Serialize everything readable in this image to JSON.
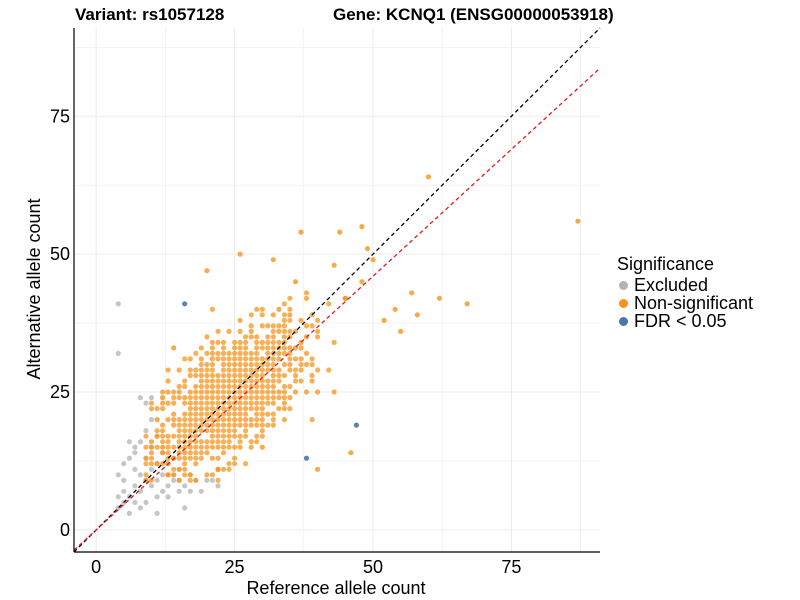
{
  "header": {
    "variant": "Variant: rs1057128",
    "gene": "Gene: KCNQ1 (ENSG00000053918)"
  },
  "legend": {
    "title": "Significance",
    "items": [
      {
        "label": "Excluded",
        "color": "#b3b3b3"
      },
      {
        "label": "Non-significant",
        "color": "#f7941d"
      },
      {
        "label": "FDR < 0.05",
        "color": "#4a76a8"
      }
    ]
  },
  "chart_data": {
    "type": "scatter",
    "xlabel": "Reference allele count",
    "ylabel": "Alternative allele count",
    "xlim": [
      -4,
      91
    ],
    "ylim": [
      -4,
      91
    ],
    "xticks": [
      0,
      25,
      50,
      75
    ],
    "yticks": [
      0,
      25,
      50,
      75
    ],
    "grid": true,
    "legend_position": "right",
    "reference_lines": [
      {
        "slope": 1.0,
        "intercept": 0,
        "color": "#000000",
        "style": "dashed"
      },
      {
        "slope": 0.92,
        "intercept": 0,
        "color": "#e41a1c",
        "style": "dashed"
      }
    ],
    "series": [
      {
        "name": "Excluded",
        "color": "#b3b3b3",
        "points": [
          [
            4,
            41
          ],
          [
            4,
            32
          ],
          [
            4,
            6
          ],
          [
            4,
            4
          ],
          [
            5,
            9
          ],
          [
            5,
            12
          ],
          [
            5,
            5
          ],
          [
            6,
            13
          ],
          [
            6,
            6
          ],
          [
            6,
            3
          ],
          [
            7,
            14
          ],
          [
            7,
            8
          ],
          [
            7,
            5
          ],
          [
            7,
            15
          ],
          [
            8,
            16
          ],
          [
            8,
            10
          ],
          [
            8,
            7
          ],
          [
            8,
            24
          ],
          [
            9,
            23
          ],
          [
            9,
            18
          ],
          [
            9,
            13
          ],
          [
            9,
            5
          ],
          [
            10,
            24
          ],
          [
            10,
            20
          ],
          [
            10,
            15
          ],
          [
            10,
            11
          ],
          [
            10,
            8
          ],
          [
            11,
            17
          ],
          [
            11,
            12
          ],
          [
            11,
            9
          ],
          [
            11,
            6
          ],
          [
            11,
            3
          ],
          [
            12,
            14
          ],
          [
            12,
            10
          ],
          [
            12,
            7
          ],
          [
            13,
            12
          ],
          [
            13,
            8
          ],
          [
            13,
            6
          ],
          [
            14,
            13
          ],
          [
            14,
            10
          ],
          [
            14,
            9
          ],
          [
            15,
            11
          ],
          [
            15,
            9
          ],
          [
            15,
            7
          ],
          [
            16,
            8
          ],
          [
            16,
            4
          ],
          [
            17,
            7
          ],
          [
            17,
            10
          ],
          [
            18,
            9
          ],
          [
            19,
            7
          ],
          [
            20,
            9
          ],
          [
            21,
            9
          ],
          [
            22,
            8
          ],
          [
            6,
            16
          ],
          [
            7,
            11
          ],
          [
            9,
            9
          ],
          [
            8,
            4
          ],
          [
            5,
            7
          ],
          [
            4,
            10
          ]
        ]
      },
      {
        "name": "FDR < 0.05",
        "color": "#4a76a8",
        "points": [
          [
            16,
            41
          ],
          [
            38,
            13
          ],
          [
            47,
            19
          ]
        ]
      }
    ],
    "nonsig_outliers": [
      [
        60,
        64
      ],
      [
        87,
        56
      ],
      [
        67,
        41
      ],
      [
        62,
        42
      ],
      [
        57,
        43
      ],
      [
        54,
        40
      ],
      [
        49,
        51
      ],
      [
        50,
        49
      ],
      [
        48,
        55
      ],
      [
        44,
        54
      ],
      [
        37,
        54
      ],
      [
        32,
        49
      ],
      [
        26,
        50
      ],
      [
        20,
        47
      ],
      [
        14,
        33
      ],
      [
        12,
        24
      ],
      [
        11,
        20
      ],
      [
        10,
        16
      ],
      [
        12,
        15
      ],
      [
        13,
        10
      ],
      [
        16,
        14
      ],
      [
        22,
        11
      ],
      [
        30,
        15
      ],
      [
        40,
        11
      ],
      [
        46,
        14
      ],
      [
        52,
        38
      ],
      [
        55,
        36
      ],
      [
        58,
        39
      ],
      [
        48,
        45
      ],
      [
        45,
        42
      ],
      [
        43,
        48
      ],
      [
        36,
        45
      ],
      [
        33,
        40
      ]
    ],
    "nonsig_cloud": {
      "count": 1200,
      "center": [
        24,
        24
      ],
      "spread": [
        6.8,
        6.8
      ],
      "correlation": 0.62,
      "xrange": [
        9,
        55
      ],
      "yrange": [
        9,
        55
      ]
    }
  }
}
